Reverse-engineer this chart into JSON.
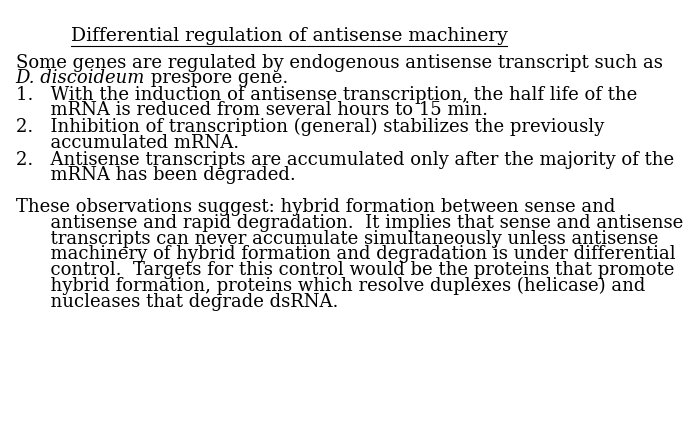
{
  "title": "Differential regulation of antisense machinery",
  "background_color": "#ffffff",
  "text_color": "#000000",
  "font_family": "serif",
  "title_fontsize": 13.5,
  "body_fontsize": 13.0,
  "line1": "Some genes are regulated by endogenous antisense transcript such as",
  "line2_italic": "D. discoideum",
  "line2_normal": " prespore gene.",
  "list_items": [
    [
      0.818,
      "1.   With the induction of antisense transcription, the half life of the"
    ],
    [
      0.78,
      "      mRNA is reduced from several hours to 15 min."
    ],
    [
      0.74,
      "2.   Inhibition of transcription (general) stabilizes the previously"
    ],
    [
      0.702,
      "      accumulated mRNA."
    ],
    [
      0.662,
      "2.   Antisense transcripts are accumulated only after the majority of the"
    ],
    [
      0.624,
      "      mRNA has been degraded."
    ]
  ],
  "para2_items": [
    [
      0.548,
      "These observations suggest: hybrid formation between sense and"
    ],
    [
      0.51,
      "      antisense and rapid degradation.  It implies that sense and antisense"
    ],
    [
      0.472,
      "      transcripts can never accumulate simultaneously unless antisense"
    ],
    [
      0.434,
      "      machinery of hybrid formation and degradation is under differential"
    ],
    [
      0.396,
      "      control.  Targets for this control would be the proteins that promote"
    ],
    [
      0.358,
      "      hybrid formation, proteins which resolve duplexes (helicase) and"
    ],
    [
      0.32,
      "      nucleases that degrade dsRNA."
    ]
  ]
}
